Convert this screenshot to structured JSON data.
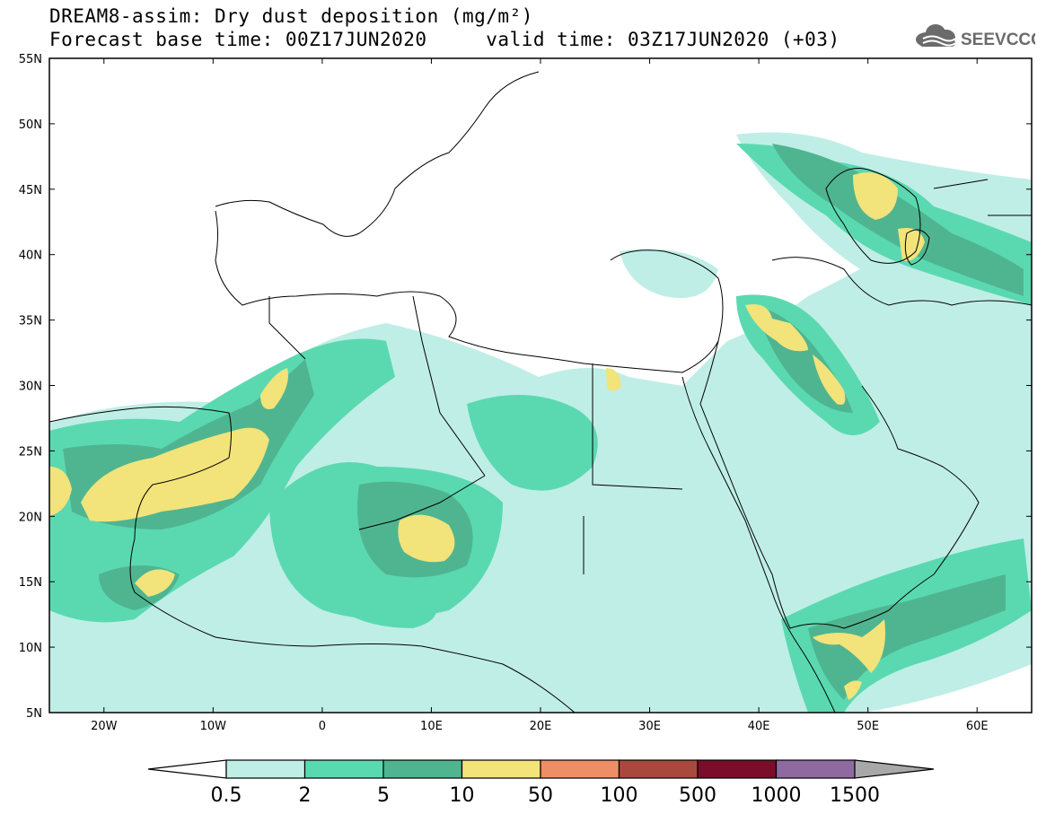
{
  "header": {
    "title_line1": "DREAM8-assim: Dry dust deposition (mg/m²)",
    "title_line2": "Forecast base time: 00Z17JUN2020     valid time: 03Z17JUN2020 (+03)"
  },
  "logo": {
    "text": "SEEVCCC",
    "icon": "cloud-logo-icon",
    "color": "#6b6b6b"
  },
  "map": {
    "lat_range": [
      5,
      55
    ],
    "lon_range": [
      -25,
      65
    ],
    "lat_labels": [
      "5N",
      "10N",
      "15N",
      "20N",
      "25N",
      "30N",
      "35N",
      "40N",
      "45N",
      "50N",
      "55N"
    ],
    "lon_labels": [
      "20W",
      "10W",
      "0",
      "10E",
      "20E",
      "30E",
      "40E",
      "50E",
      "60E"
    ]
  },
  "colorbar": {
    "labels": [
      "0.5",
      "2",
      "5",
      "10",
      "50",
      "100",
      "500",
      "1000",
      "1500"
    ],
    "colors": [
      "#bfeee6",
      "#5ad9b1",
      "#4fb590",
      "#f2e37a",
      "#ee8e66",
      "#a9493e",
      "#7a0d2a",
      "#8e6aa0",
      "#a8a8a8"
    ]
  }
}
